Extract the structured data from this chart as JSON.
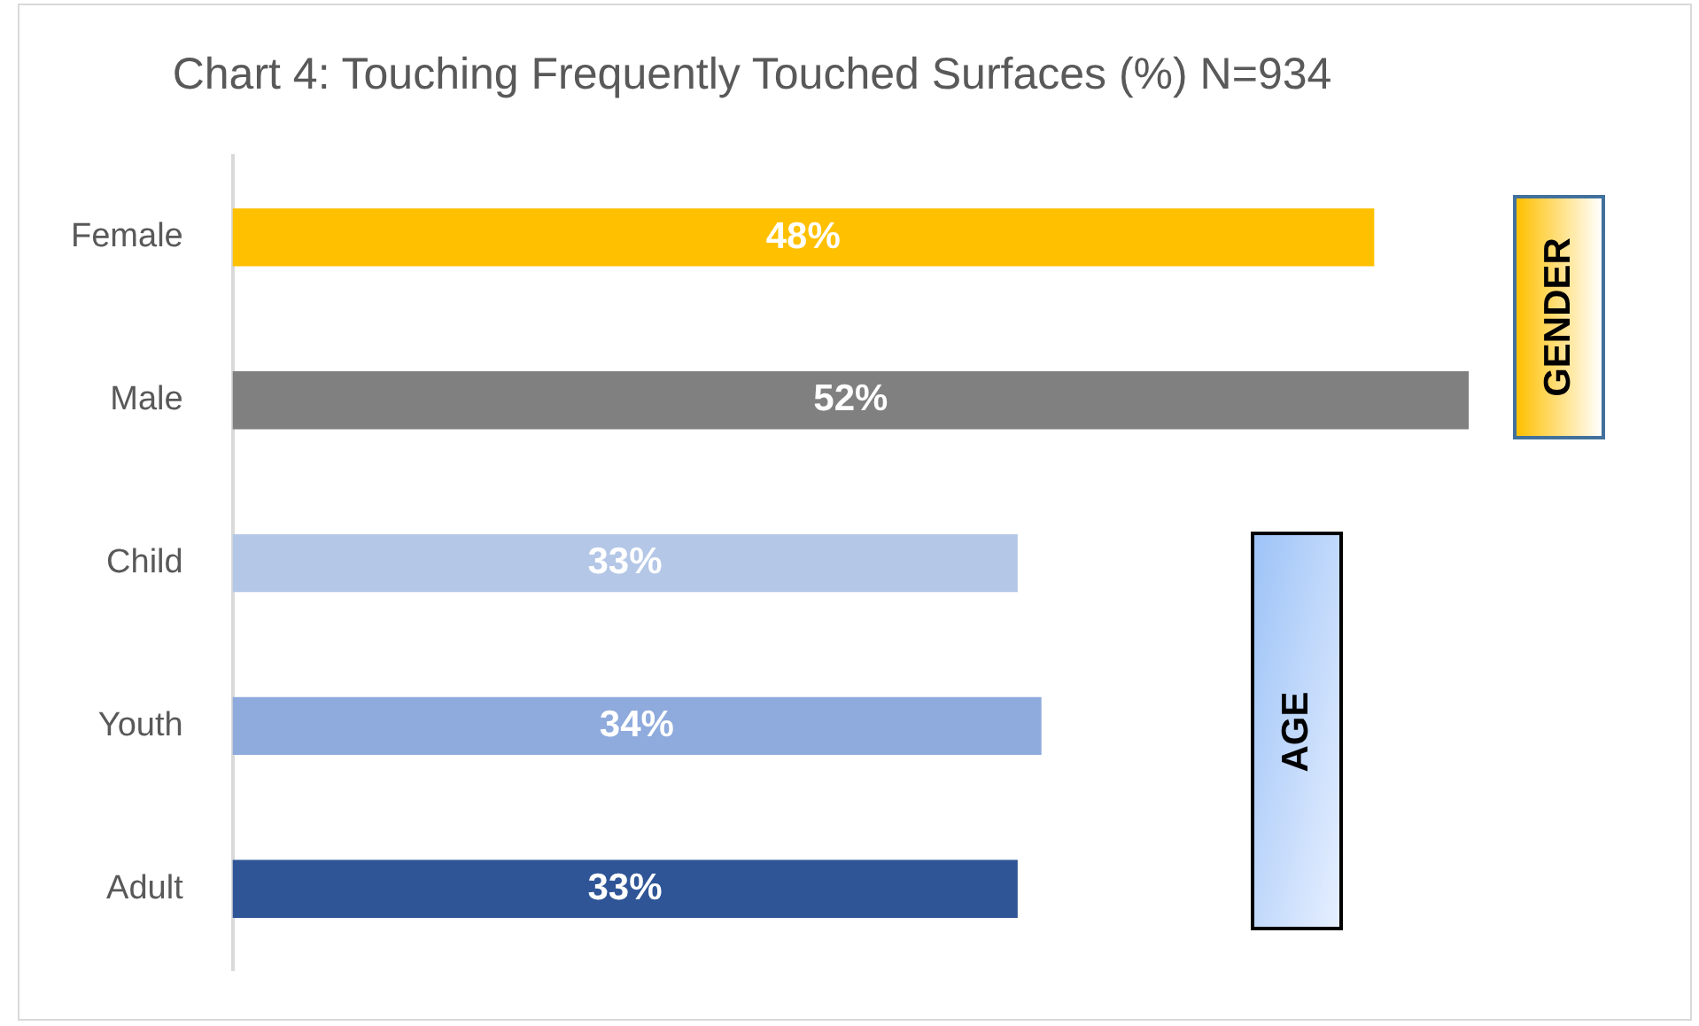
{
  "chart_data": {
    "type": "bar",
    "orientation": "horizontal",
    "title": "Chart 4: Touching Frequently Touched Surfaces (%) N=934",
    "categories": [
      "Female",
      "Male",
      "Child",
      "Youth",
      "Adult"
    ],
    "values": [
      48,
      52,
      33,
      34,
      33
    ],
    "colors": [
      "#ffc000",
      "#808080",
      "#b4c7e7",
      "#8faadc",
      "#2f5597"
    ],
    "value_labels": [
      "48%",
      "52%",
      "33%",
      "34%",
      "33%"
    ],
    "annotations": [
      "GENDER",
      "AGE"
    ],
    "tick_labels": "y"
  }
}
